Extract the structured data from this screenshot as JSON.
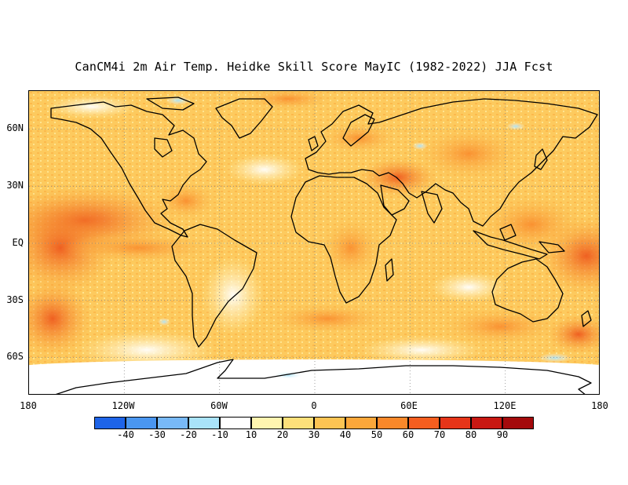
{
  "title": "CanCM4i 2m Air Temp. Heidke Skill Score MayIC (1982-2022) JJA Fcst",
  "map": {
    "projection": "equirectangular",
    "lon_range": [
      -180,
      180
    ],
    "lat_range": [
      -80,
      80
    ],
    "lat_labels": [
      "60N",
      "30N",
      "EQ",
      "30S",
      "60S"
    ],
    "lon_labels": [
      "180",
      "120W",
      "60W",
      "0",
      "60E",
      "120E",
      "180"
    ],
    "field": "Heidke Skill Score",
    "coastline_color": "#000000",
    "gridlines": "dotted"
  },
  "colorbar": {
    "colors": [
      "#1e64e8",
      "#4a96f0",
      "#78b9f7",
      "#a9e3f9",
      "#ffffff",
      "#fff5b0",
      "#fde07a",
      "#fcc453",
      "#fba73a",
      "#f9882a",
      "#f55e1f",
      "#e63519",
      "#c81812",
      "#a40a0c"
    ],
    "labels": [
      "-40",
      "-30",
      "-20",
      "-10",
      "10",
      "20",
      "30",
      "40",
      "50",
      "60",
      "70",
      "80",
      "90"
    ]
  }
}
